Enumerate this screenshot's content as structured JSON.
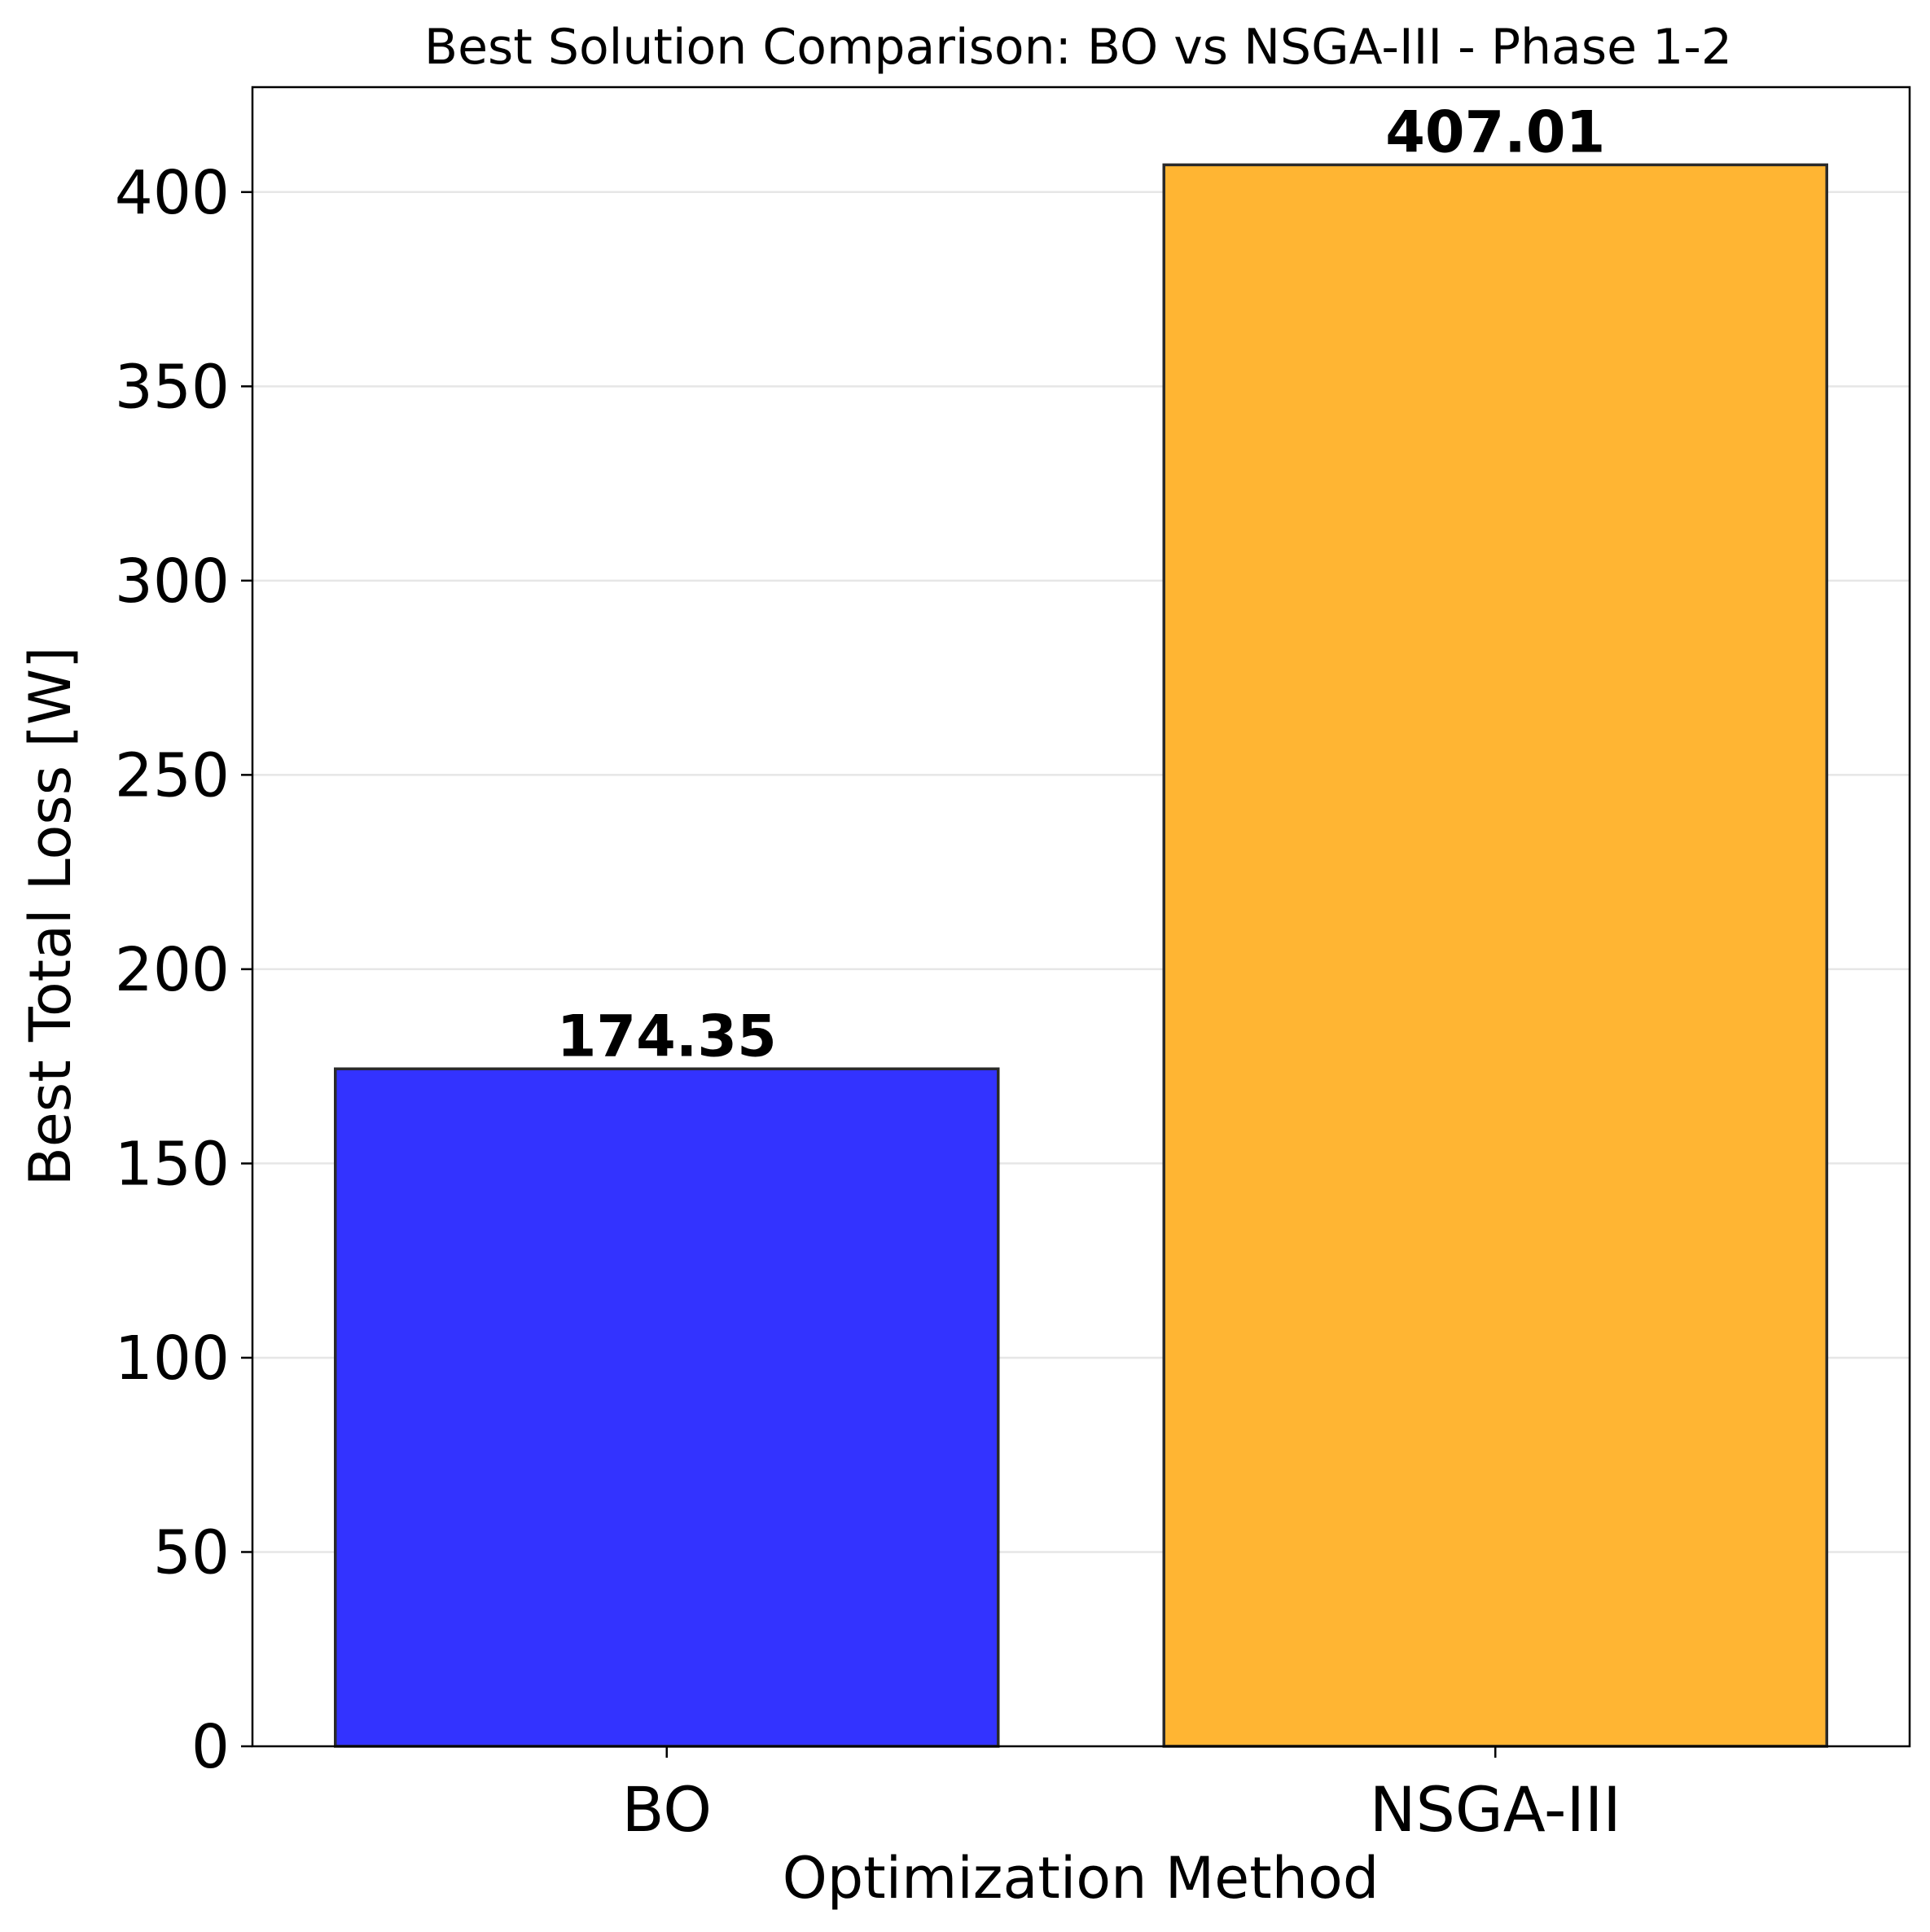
{
  "chart_data": {
    "type": "bar",
    "title": "Best Solution Comparison: BO vs NSGA-III - Phase 1-2",
    "xlabel": "Optimization Method",
    "ylabel": "Best Total Loss [W]",
    "categories": [
      "BO",
      "NSGA-III"
    ],
    "values": [
      174.35,
      407.01
    ],
    "data_labels": [
      "174.35",
      "407.01"
    ],
    "bar_colors": [
      "#3333ff",
      "#ffb533"
    ],
    "bar_edge_color": "#2a2a2a",
    "ylim": [
      0,
      427
    ],
    "yticks": [
      0,
      50,
      100,
      150,
      200,
      250,
      300,
      350,
      400
    ],
    "ytick_labels": [
      "0",
      "50",
      "100",
      "150",
      "200",
      "250",
      "300",
      "350",
      "400"
    ],
    "grid": "y",
    "grid_color": "#e6e6e6",
    "legend": "none"
  }
}
